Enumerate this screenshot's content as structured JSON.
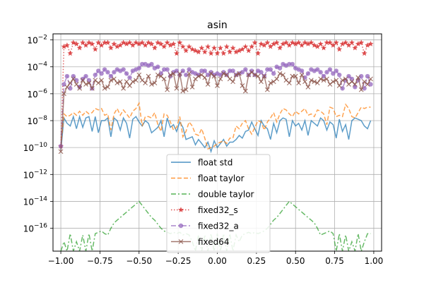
{
  "chart_data": {
    "type": "line",
    "title": "asin",
    "xlabel": "",
    "ylabel": "",
    "xlim": [
      -1.05,
      1.05
    ],
    "ylim_log10": [
      -17.7,
      -1.55
    ],
    "yscale": "log",
    "grid": true,
    "legend_position": "lower center",
    "x_ticks": [
      -1.0,
      -0.75,
      -0.5,
      -0.25,
      0.0,
      0.25,
      0.5,
      0.75,
      1.0
    ],
    "x_tick_labels": [
      "−1.00",
      "−0.75",
      "−0.50",
      "−0.25",
      "0.00",
      "0.25",
      "0.50",
      "0.75",
      "1.00"
    ],
    "y_tick_exponents": [
      -16,
      -14,
      -12,
      -10,
      -8,
      -6,
      -4,
      -2
    ],
    "y_tick_base": "10",
    "y_tick_exponent_labels": [
      "−16",
      "−14",
      "−12",
      "−10",
      "−8",
      "−6",
      "−4",
      "−2"
    ],
    "x_sample": [
      -1.0,
      -0.98,
      -0.96,
      -0.94,
      -0.92,
      -0.9,
      -0.88,
      -0.86,
      -0.84,
      -0.82,
      -0.8,
      -0.78,
      -0.76,
      -0.74,
      -0.72,
      -0.7,
      -0.68,
      -0.66,
      -0.64,
      -0.62,
      -0.6,
      -0.58,
      -0.56,
      -0.54,
      -0.52,
      -0.5,
      -0.48,
      -0.46,
      -0.44,
      -0.42,
      -0.4,
      -0.38,
      -0.36,
      -0.34,
      -0.32,
      -0.3,
      -0.28,
      -0.26,
      -0.24,
      -0.22,
      -0.2,
      -0.18,
      -0.16,
      -0.14,
      -0.12,
      -0.1,
      -0.08,
      -0.06,
      -0.04,
      -0.02,
      0.0,
      0.02,
      0.04,
      0.06,
      0.08,
      0.1,
      0.12,
      0.14,
      0.16,
      0.18,
      0.2,
      0.22,
      0.24,
      0.26,
      0.28,
      0.3,
      0.32,
      0.34,
      0.36,
      0.38,
      0.4,
      0.42,
      0.44,
      0.46,
      0.48,
      0.5,
      0.52,
      0.54,
      0.56,
      0.58,
      0.6,
      0.62,
      0.64,
      0.66,
      0.68,
      0.7,
      0.72,
      0.74,
      0.76,
      0.78,
      0.8,
      0.82,
      0.84,
      0.86,
      0.88,
      0.9,
      0.92,
      0.94,
      0.96,
      0.98
    ],
    "series": [
      {
        "name": "float std",
        "color": "#1f77b4",
        "linestyle": "solid",
        "marker": "none",
        "log10_values": [
          -10.2,
          -7.8,
          -8.2,
          -8.4,
          -7.7,
          -8.6,
          -7.7,
          -8.5,
          -7.8,
          -7.7,
          -8.8,
          -7.7,
          -8.9,
          -8.0,
          -8.0,
          -7.8,
          -9.2,
          -7.8,
          -8.0,
          -8.7,
          -7.8,
          -8.2,
          -9.3,
          -7.9,
          -7.7,
          -8.1,
          -8.4,
          -8.0,
          -8.2,
          -8.9,
          -8.7,
          -8.5,
          -8.0,
          -9.2,
          -7.8,
          -8.5,
          -8.3,
          -8.8,
          -8.1,
          -8.5,
          -9.4,
          -9.3,
          -9.2,
          -9.8,
          -9.4,
          -9.7,
          -10.0,
          -9.6,
          -10.3,
          -9.5,
          -10.0,
          -9.7,
          -9.4,
          -9.9,
          -9.6,
          -9.6,
          -9.4,
          -9.1,
          -9.3,
          -8.8,
          -8.7,
          -8.1,
          -8.6,
          -9.1,
          -8.0,
          -8.4,
          -8.6,
          -9.4,
          -8.2,
          -8.9,
          -8.0,
          -7.8,
          -7.9,
          -9.2,
          -8.0,
          -8.4,
          -8.2,
          -8.7,
          -8.0,
          -9.1,
          -8.0,
          -8.2,
          -8.4,
          -7.8,
          -8.0,
          -8.7,
          -8.1,
          -8.3,
          -9.3,
          -7.9,
          -8.8,
          -8.3,
          -9.4,
          -8.0,
          -7.8,
          -7.9,
          -8.0,
          -8.4,
          -8.6,
          -8.0
        ]
      },
      {
        "name": "float taylor",
        "color": "#ff7f0e",
        "linestyle": "dashed",
        "marker": "none",
        "log10_values": [
          -9.9,
          -7.5,
          -7.7,
          -7.6,
          -7.4,
          -7.6,
          -7.3,
          -7.6,
          -7.3,
          -7.5,
          -7.4,
          -7.1,
          -7.2,
          -7.1,
          -7.6,
          -7.5,
          -8.7,
          -7.5,
          -7.1,
          -7.6,
          -7.2,
          -7.5,
          -7.8,
          -7.3,
          -7.1,
          -6.7,
          -8.4,
          -7.7,
          -7.7,
          -7.8,
          -7.4,
          -8.3,
          -8.8,
          -7.5,
          -7.6,
          -8.1,
          -8.7,
          -8.5,
          -7.7,
          -9.2,
          -8.8,
          -8.1,
          -8.4,
          -9.0,
          -9.1,
          -8.6,
          -9.3,
          -10.1,
          -10.0,
          -9.9,
          -9.7,
          -9.6,
          -9.5,
          -9.7,
          -9.3,
          -9.3,
          -8.4,
          -8.6,
          -8.2,
          -8.0,
          -8.6,
          -9.0,
          -8.5,
          -8.0,
          -8.1,
          -8.7,
          -8.1,
          -7.8,
          -7.4,
          -8.1,
          -7.5,
          -7.1,
          -7.2,
          -7.5,
          -7.7,
          -7.3,
          -7.5,
          -7.3,
          -7.1,
          -7.6,
          -7.5,
          -7.7,
          -7.2,
          -7.3,
          -7.5,
          -8.3,
          -7.0,
          -7.1,
          -7.7,
          -7.6,
          -7.7,
          -6.8,
          -7.1,
          -7.7,
          -7.8,
          -7.4,
          -7.0,
          -7.1,
          -7.0,
          -7.0
        ]
      },
      {
        "name": "double taylor",
        "color": "#2ca02c",
        "linestyle": "dashdot",
        "marker": "none",
        "log10_values": [
          -17.7,
          -17.0,
          -17.7,
          -16.4,
          -17.7,
          -17.0,
          -17.7,
          -16.5,
          -17.7,
          -16.4,
          -17.7,
          -16.4,
          -16.3,
          -16.2,
          -16.4,
          -16.5,
          -16.0,
          -15.6,
          -15.4,
          -15.2,
          -15.0,
          -14.8,
          -14.6,
          -14.4,
          -14.2,
          -14.0,
          -14.3,
          -14.6,
          -14.9,
          -15.2,
          -15.4,
          -15.7,
          -16.0,
          -16.2,
          -16.3,
          -16.4,
          -16.3,
          -16.4,
          -16.3,
          -16.5,
          -16.4,
          -16.5,
          -17.0,
          -17.7,
          -16.5,
          -17.7,
          -16.5,
          -17.7,
          -16.4,
          -17.7,
          -16.4,
          -17.7,
          -16.4,
          -17.7,
          -16.4,
          -17.7,
          -16.5,
          -17.0,
          -16.5,
          -16.4,
          -16.3,
          -16.4,
          -16.3,
          -16.4,
          -16.3,
          -16.2,
          -16.0,
          -15.7,
          -15.4,
          -15.2,
          -14.9,
          -14.6,
          -14.3,
          -14.0,
          -14.2,
          -14.4,
          -14.6,
          -14.8,
          -15.0,
          -15.2,
          -15.4,
          -15.6,
          -16.0,
          -16.5,
          -16.4,
          -16.3,
          -16.2,
          -16.4,
          -17.7,
          -16.4,
          -17.7,
          -16.5,
          -17.7,
          -17.0,
          -17.7,
          -16.4,
          -17.7,
          -17.0,
          -16.4,
          -16.4
        ]
      },
      {
        "name": "fixed32_s",
        "color": "#d62728",
        "linestyle": "dotted",
        "marker": "star",
        "log10_values": [
          -9.9,
          -2.5,
          -2.4,
          -3.0,
          -2.2,
          -2.3,
          -2.6,
          -2.2,
          -2.4,
          -2.2,
          -2.3,
          -2.7,
          -2.2,
          -2.4,
          -2.2,
          -2.2,
          -2.6,
          -2.3,
          -2.5,
          -2.4,
          -2.2,
          -2.3,
          -2.2,
          -2.4,
          -2.2,
          -2.3,
          -2.2,
          -2.4,
          -2.2,
          -2.3,
          -2.6,
          -2.2,
          -2.3,
          -2.5,
          -2.2,
          -2.4,
          -2.3,
          -3.0,
          -2.2,
          -2.5,
          -2.8,
          -2.5,
          -2.7,
          -2.8,
          -2.9,
          -2.6,
          -2.9,
          -2.5,
          -3.0,
          -2.6,
          -3.0,
          -2.6,
          -3.0,
          -2.5,
          -2.9,
          -2.6,
          -2.9,
          -2.8,
          -2.7,
          -2.5,
          -2.8,
          -2.5,
          -2.2,
          -3.0,
          -2.3,
          -2.4,
          -2.2,
          -2.5,
          -2.3,
          -2.2,
          -2.6,
          -2.3,
          -2.2,
          -2.4,
          -2.2,
          -2.3,
          -2.2,
          -2.4,
          -2.2,
          -2.3,
          -2.2,
          -2.4,
          -2.5,
          -2.3,
          -2.6,
          -2.2,
          -2.2,
          -2.4,
          -2.2,
          -2.7,
          -2.3,
          -2.2,
          -2.4,
          -2.2,
          -2.6,
          -2.3,
          -2.2,
          -3.0,
          -2.4,
          -2.3
        ]
      },
      {
        "name": "fixed32_a",
        "color": "#9467bd",
        "linestyle": "dashdot",
        "marker": "circle",
        "log10_values": [
          -9.9,
          -5.3,
          -4.7,
          -5.6,
          -4.7,
          -5.0,
          -5.5,
          -4.9,
          -4.7,
          -5.0,
          -5.6,
          -4.6,
          -4.3,
          -4.5,
          -4.2,
          -4.4,
          -4.7,
          -4.4,
          -4.2,
          -4.3,
          -4.2,
          -4.5,
          -4.8,
          -4.3,
          -4.2,
          -4.1,
          -3.8,
          -3.8,
          -3.9,
          -3.8,
          -4.1,
          -4.0,
          -4.5,
          -4.2,
          -4.2,
          -4.7,
          -4.4,
          -4.3,
          -4.6,
          -4.3,
          -4.6,
          -4.2,
          -4.4,
          -4.5,
          -4.6,
          -4.3,
          -4.3,
          -4.6,
          -4.4,
          -4.6,
          -4.5,
          -4.6,
          -4.4,
          -4.6,
          -4.3,
          -4.3,
          -4.6,
          -4.5,
          -4.4,
          -4.2,
          -4.6,
          -4.3,
          -4.6,
          -4.3,
          -4.4,
          -4.7,
          -4.2,
          -4.2,
          -4.5,
          -4.0,
          -4.1,
          -3.8,
          -3.9,
          -3.8,
          -3.8,
          -4.1,
          -4.2,
          -4.3,
          -4.8,
          -4.5,
          -4.2,
          -4.3,
          -4.2,
          -4.4,
          -4.7,
          -4.4,
          -4.2,
          -4.5,
          -4.3,
          -4.6,
          -5.6,
          -5.0,
          -4.7,
          -4.9,
          -5.5,
          -5.0,
          -4.7,
          -5.6,
          -4.7,
          -5.3
        ]
      },
      {
        "name": "fixed64",
        "color": "#8c564b",
        "linestyle": "solid",
        "marker": "x",
        "log10_values": [
          -10.3,
          -6.0,
          -5.5,
          -5.2,
          -4.9,
          -5.3,
          -5.6,
          -5.0,
          -5.3,
          -5.2,
          -5.6,
          -5.0,
          -5.2,
          -5.0,
          -5.6,
          -5.5,
          -5.0,
          -4.9,
          -5.2,
          -5.1,
          -5.6,
          -5.1,
          -5.4,
          -5.1,
          -5.0,
          -4.6,
          -5.0,
          -5.2,
          -4.7,
          -5.3,
          -5.2,
          -4.6,
          -4.7,
          -4.9,
          -5.7,
          -4.6,
          -4.5,
          -5.6,
          -4.5,
          -5.8,
          -5.7,
          -4.5,
          -5.5,
          -4.9,
          -4.7,
          -4.6,
          -4.8,
          -5.3,
          -4.5,
          -4.7,
          -5.4,
          -4.9,
          -4.5,
          -4.6,
          -4.9,
          -5.1,
          -4.6,
          -4.5,
          -5.4,
          -5.8,
          -4.6,
          -4.4,
          -4.6,
          -4.7,
          -5.1,
          -4.7,
          -5.7,
          -5.2,
          -5.1,
          -4.9,
          -4.5,
          -4.6,
          -5.0,
          -5.2,
          -4.7,
          -4.7,
          -5.2,
          -4.6,
          -5.1,
          -5.5,
          -5.0,
          -5.1,
          -5.2,
          -4.9,
          -5.0,
          -4.9,
          -5.3,
          -5.1,
          -5.0,
          -5.4,
          -5.0,
          -4.9,
          -5.3,
          -5.1,
          -5.3,
          -4.8,
          -5.7,
          -5.1,
          -5.3,
          -4.9
        ]
      }
    ]
  }
}
